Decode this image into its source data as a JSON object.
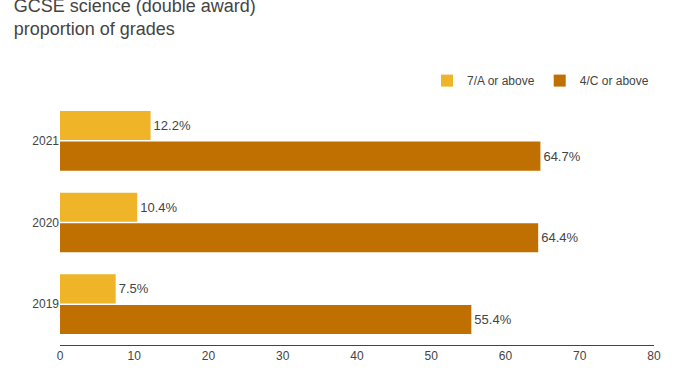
{
  "chart_data": {
    "type": "bar",
    "orientation": "horizontal",
    "title": "GCSE science (double award)\nproportion of grades",
    "categories": [
      "2021",
      "2020",
      "2019"
    ],
    "series": [
      {
        "name": "7/A or above",
        "color": "#f0b429",
        "values": [
          12.2,
          10.4,
          7.5
        ],
        "value_labels": [
          "12.2%",
          "10.4%",
          "7.5%"
        ]
      },
      {
        "name": "4/C or above",
        "color": "#c07000",
        "values": [
          64.7,
          64.4,
          55.4
        ],
        "value_labels": [
          "64.7%",
          "64.4%",
          "55.4%"
        ]
      }
    ],
    "xlim": [
      0,
      80
    ],
    "xticks": [
      0,
      10,
      20,
      30,
      40,
      50,
      60,
      70,
      80
    ],
    "grid": false,
    "legend": "upper right",
    "data_labels": true
  }
}
